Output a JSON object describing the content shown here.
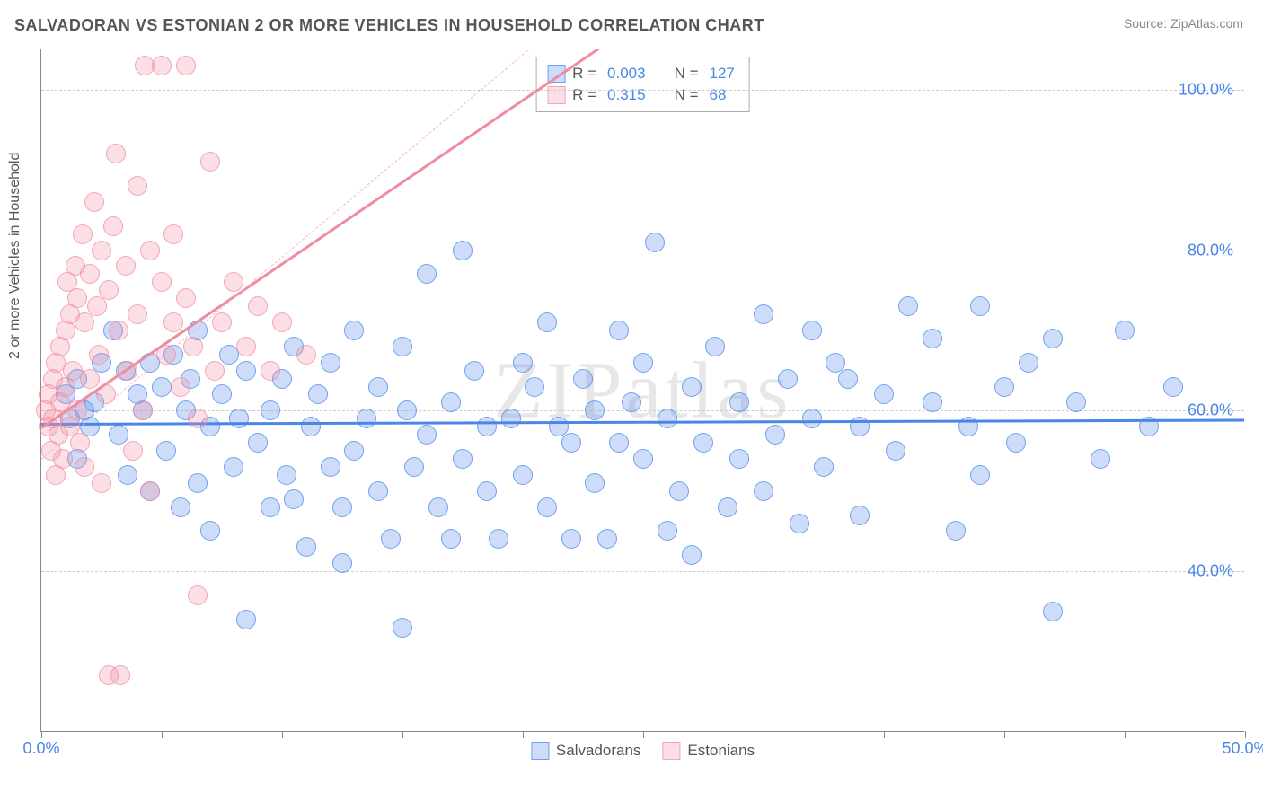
{
  "title": "SALVADORAN VS ESTONIAN 2 OR MORE VEHICLES IN HOUSEHOLD CORRELATION CHART",
  "source_label": "Source: ZipAtlas.com",
  "y_axis_label": "2 or more Vehicles in Household",
  "watermark": {
    "part1": "ZIP",
    "part2": "atlas"
  },
  "chart": {
    "type": "scatter",
    "xlim": [
      0,
      50
    ],
    "ylim": [
      20,
      105
    ],
    "xtick_positions": [
      0,
      5,
      10,
      15,
      20,
      25,
      30,
      35,
      40,
      45,
      50
    ],
    "xtick_labels": {
      "0": "0.0%",
      "50": "50.0%"
    },
    "ytick_positions": [
      40,
      60,
      80,
      100
    ],
    "ytick_labels": {
      "40": "40.0%",
      "60": "60.0%",
      "80": "80.0%",
      "100": "100.0%"
    },
    "grid_y": [
      40,
      60,
      80,
      100
    ],
    "background_color": "#ffffff",
    "grid_color": "#cccccc",
    "axis_color": "#888888",
    "tick_label_color": "#4a86e8",
    "marker_radius": 11,
    "marker_fill_opacity": 0.28,
    "marker_stroke_opacity": 0.7,
    "marker_stroke_width": 1.5
  },
  "series": [
    {
      "name": "Salvadorans",
      "color": "#4a86e8",
      "fill": "rgba(74,134,232,0.28)",
      "stroke": "rgba(74,134,232,0.7)",
      "R": "0.003",
      "N": "127",
      "trend": {
        "y_at_x0": 58.5,
        "y_at_x50": 59.0,
        "width": 3
      },
      "data": [
        [
          1.0,
          62
        ],
        [
          1.2,
          59
        ],
        [
          1.5,
          64
        ],
        [
          1.5,
          54
        ],
        [
          1.8,
          60
        ],
        [
          2.0,
          58
        ],
        [
          2.2,
          61
        ],
        [
          2.5,
          66
        ],
        [
          3.0,
          70
        ],
        [
          3.2,
          57
        ],
        [
          3.5,
          65
        ],
        [
          3.6,
          52
        ],
        [
          4.0,
          62
        ],
        [
          4.2,
          60
        ],
        [
          4.5,
          66
        ],
        [
          4.5,
          50
        ],
        [
          5.0,
          63
        ],
        [
          5.2,
          55
        ],
        [
          5.5,
          67
        ],
        [
          5.8,
          48
        ],
        [
          6.0,
          60
        ],
        [
          6.2,
          64
        ],
        [
          6.5,
          51
        ],
        [
          6.5,
          70
        ],
        [
          7.0,
          58
        ],
        [
          7.0,
          45
        ],
        [
          7.5,
          62
        ],
        [
          7.8,
          67
        ],
        [
          8.0,
          53
        ],
        [
          8.2,
          59
        ],
        [
          8.5,
          65
        ],
        [
          8.5,
          34
        ],
        [
          9.0,
          56
        ],
        [
          9.5,
          60
        ],
        [
          9.5,
          48
        ],
        [
          10.0,
          64
        ],
        [
          10.2,
          52
        ],
        [
          10.5,
          68
        ],
        [
          10.5,
          49
        ],
        [
          11.0,
          43
        ],
        [
          11.2,
          58
        ],
        [
          11.5,
          62
        ],
        [
          12.0,
          66
        ],
        [
          12.0,
          53
        ],
        [
          12.5,
          48
        ],
        [
          12.5,
          41
        ],
        [
          13.0,
          55
        ],
        [
          13.0,
          70
        ],
        [
          13.5,
          59
        ],
        [
          14.0,
          63
        ],
        [
          14.0,
          50
        ],
        [
          14.5,
          44
        ],
        [
          15.0,
          68
        ],
        [
          15.0,
          33
        ],
        [
          15.2,
          60
        ],
        [
          15.5,
          53
        ],
        [
          16.0,
          77
        ],
        [
          16.0,
          57
        ],
        [
          16.5,
          48
        ],
        [
          17.0,
          61
        ],
        [
          17.0,
          44
        ],
        [
          17.5,
          54
        ],
        [
          17.5,
          80
        ],
        [
          18.0,
          65
        ],
        [
          18.5,
          58
        ],
        [
          18.5,
          50
        ],
        [
          19.0,
          44
        ],
        [
          19.5,
          59
        ],
        [
          20.0,
          66
        ],
        [
          20.0,
          52
        ],
        [
          20.5,
          63
        ],
        [
          21.0,
          71
        ],
        [
          21.0,
          48
        ],
        [
          21.5,
          58
        ],
        [
          22.0,
          56
        ],
        [
          22.0,
          44
        ],
        [
          22.5,
          64
        ],
        [
          23.0,
          51
        ],
        [
          23.0,
          60
        ],
        [
          23.5,
          44
        ],
        [
          24.0,
          70
        ],
        [
          24.0,
          56
        ],
        [
          24.5,
          61
        ],
        [
          25.0,
          54
        ],
        [
          25.0,
          66
        ],
        [
          25.5,
          81
        ],
        [
          26.0,
          59
        ],
        [
          26.0,
          45
        ],
        [
          26.5,
          50
        ],
        [
          27.0,
          63
        ],
        [
          27.0,
          42
        ],
        [
          27.5,
          56
        ],
        [
          28.0,
          68
        ],
        [
          28.5,
          48
        ],
        [
          29.0,
          61
        ],
        [
          29.0,
          54
        ],
        [
          30.0,
          72
        ],
        [
          30.0,
          50
        ],
        [
          30.5,
          57
        ],
        [
          31.0,
          64
        ],
        [
          31.5,
          46
        ],
        [
          32.0,
          59
        ],
        [
          32.0,
          70
        ],
        [
          32.5,
          53
        ],
        [
          33.0,
          66
        ],
        [
          33.5,
          64
        ],
        [
          34.0,
          58
        ],
        [
          34.0,
          47
        ],
        [
          35.0,
          62
        ],
        [
          35.5,
          55
        ],
        [
          36.0,
          73
        ],
        [
          37.0,
          61
        ],
        [
          37.0,
          69
        ],
        [
          38.0,
          45
        ],
        [
          38.5,
          58
        ],
        [
          39.0,
          52
        ],
        [
          39.0,
          73
        ],
        [
          40.0,
          63
        ],
        [
          40.5,
          56
        ],
        [
          41.0,
          66
        ],
        [
          42.0,
          69
        ],
        [
          42.0,
          35
        ],
        [
          43.0,
          61
        ],
        [
          44.0,
          54
        ],
        [
          45.0,
          70
        ],
        [
          46.0,
          58
        ],
        [
          47.0,
          63
        ]
      ]
    },
    {
      "name": "Estonians",
      "color": "#f08ca0",
      "fill": "rgba(240,140,160,0.28)",
      "stroke": "rgba(240,140,160,0.7)",
      "R": "0.315",
      "N": "68",
      "trend": {
        "y_at_x0": 58,
        "y_at_x50": 160,
        "width": 2.5
      },
      "diagonal": {
        "y_at_x0": 54,
        "y_at_x50": 180
      },
      "data": [
        [
          0.2,
          60
        ],
        [
          0.3,
          62
        ],
        [
          0.3,
          58
        ],
        [
          0.4,
          55
        ],
        [
          0.5,
          64
        ],
        [
          0.5,
          59
        ],
        [
          0.6,
          66
        ],
        [
          0.6,
          52
        ],
        [
          0.7,
          57
        ],
        [
          0.8,
          61
        ],
        [
          0.8,
          68
        ],
        [
          0.9,
          54
        ],
        [
          1.0,
          63
        ],
        [
          1.0,
          70
        ],
        [
          1.1,
          76
        ],
        [
          1.2,
          58
        ],
        [
          1.2,
          72
        ],
        [
          1.3,
          65
        ],
        [
          1.4,
          78
        ],
        [
          1.5,
          74
        ],
        [
          1.5,
          60
        ],
        [
          1.6,
          56
        ],
        [
          1.7,
          82
        ],
        [
          1.8,
          71
        ],
        [
          1.8,
          53
        ],
        [
          2.0,
          77
        ],
        [
          2.0,
          64
        ],
        [
          2.2,
          86
        ],
        [
          2.3,
          73
        ],
        [
          2.4,
          67
        ],
        [
          2.5,
          80
        ],
        [
          2.5,
          51
        ],
        [
          2.7,
          62
        ],
        [
          2.8,
          75
        ],
        [
          2.8,
          27
        ],
        [
          3.0,
          83
        ],
        [
          3.1,
          92
        ],
        [
          3.2,
          70
        ],
        [
          3.3,
          27
        ],
        [
          3.5,
          78
        ],
        [
          3.6,
          65
        ],
        [
          3.8,
          55
        ],
        [
          4.0,
          88
        ],
        [
          4.0,
          72
        ],
        [
          4.2,
          60
        ],
        [
          4.3,
          103
        ],
        [
          4.5,
          80
        ],
        [
          4.5,
          50
        ],
        [
          5.0,
          76
        ],
        [
          5.0,
          103
        ],
        [
          5.2,
          67
        ],
        [
          5.5,
          71
        ],
        [
          5.5,
          82
        ],
        [
          5.8,
          63
        ],
        [
          6.0,
          74
        ],
        [
          6.0,
          103
        ],
        [
          6.3,
          68
        ],
        [
          6.5,
          59
        ],
        [
          6.5,
          37
        ],
        [
          7.0,
          91
        ],
        [
          7.2,
          65
        ],
        [
          7.5,
          71
        ],
        [
          8.0,
          76
        ],
        [
          8.5,
          68
        ],
        [
          9.0,
          73
        ],
        [
          9.5,
          65
        ],
        [
          10.0,
          71
        ],
        [
          11.0,
          67
        ]
      ]
    }
  ],
  "legend_top": {
    "rows": [
      {
        "color_idx": 0,
        "R_label": "R =",
        "N_label": "N ="
      },
      {
        "color_idx": 1,
        "R_label": "R =",
        "N_label": "N ="
      }
    ]
  },
  "legend_bottom": {
    "items": [
      {
        "color_idx": 0
      },
      {
        "color_idx": 1
      }
    ]
  }
}
